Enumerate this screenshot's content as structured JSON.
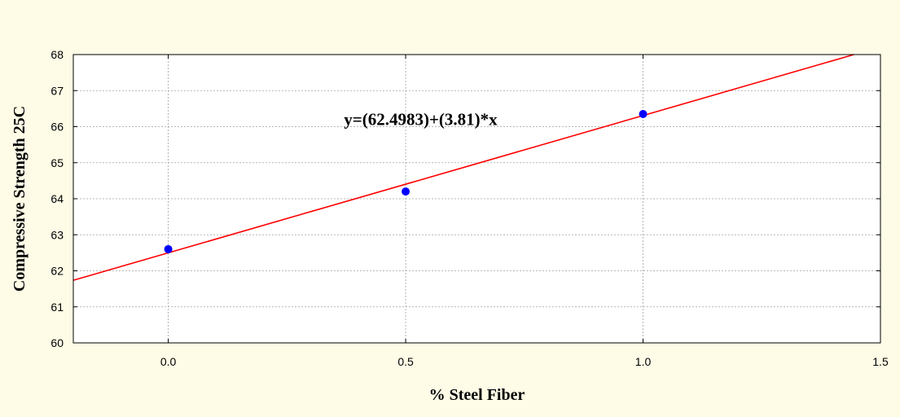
{
  "chart_data": {
    "type": "scatter",
    "xlabel": "% Steel Fiber",
    "ylabel": "Compressive Strength 25C",
    "xlim": [
      -0.2,
      1.5
    ],
    "ylim": [
      60,
      68
    ],
    "x_ticks": [
      "0.0",
      "0.5",
      "1.0",
      "1.5"
    ],
    "y_ticks": [
      "60",
      "61",
      "62",
      "63",
      "64",
      "65",
      "66",
      "67",
      "68"
    ],
    "grid": true,
    "points": [
      {
        "x": 0.0,
        "y": 62.6
      },
      {
        "x": 0.5,
        "y": 64.2
      },
      {
        "x": 1.0,
        "y": 66.35
      }
    ],
    "fit_line": {
      "intercept": 62.4983,
      "slope": 3.81
    },
    "annotation": "y=(62.4983)+(3.81)*x",
    "colors": {
      "background": "#fefbe6",
      "plot_area": "#ffffff",
      "points": "#0000ff",
      "fit_line": "#ff0000",
      "grid": "#a0a0a0"
    }
  }
}
